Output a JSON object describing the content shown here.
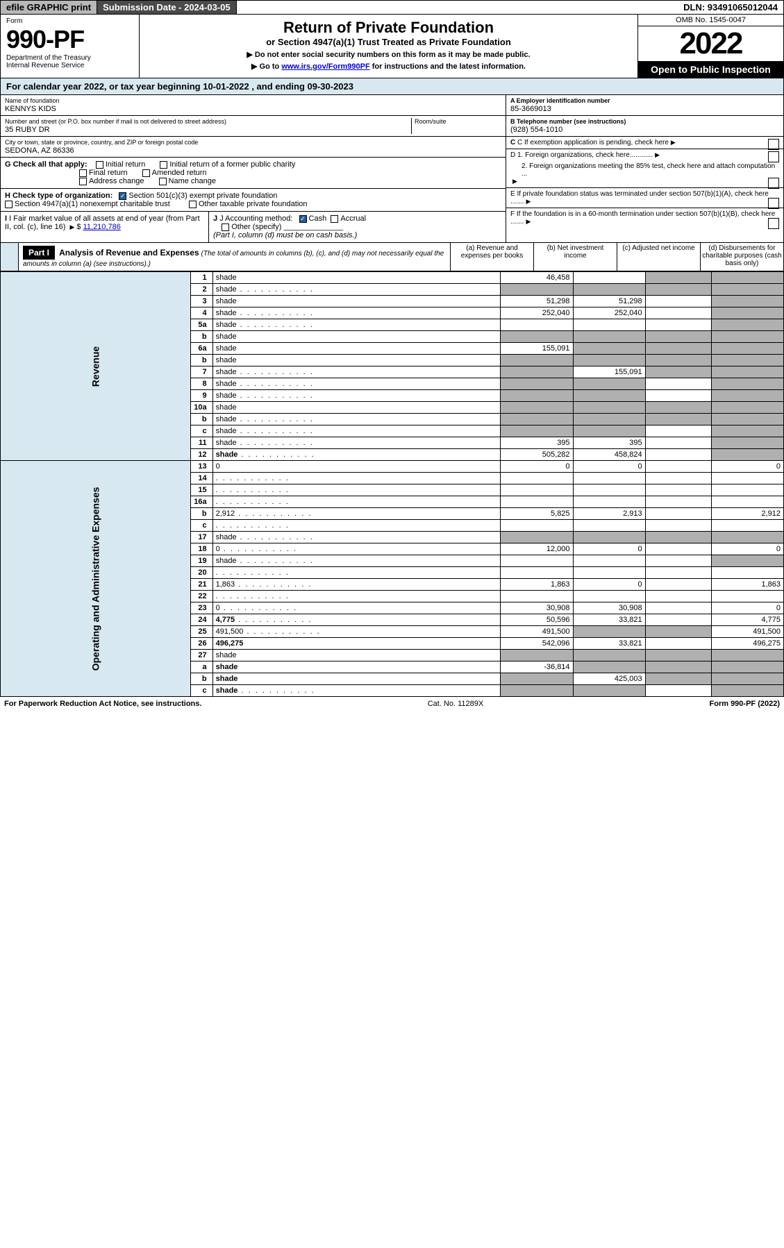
{
  "top": {
    "efile": "efile GRAPHIC print",
    "submission": "Submission Date - 2024-03-05",
    "dln": "DLN: 93491065012044"
  },
  "header": {
    "form_label": "Form",
    "form_num": "990-PF",
    "dept": "Department of the Treasury",
    "irs": "Internal Revenue Service",
    "title": "Return of Private Foundation",
    "subtitle": "or Section 4947(a)(1) Trust Treated as Private Foundation",
    "instr1": "▶ Do not enter social security numbers on this form as it may be made public.",
    "instr2_pre": "▶ Go to ",
    "instr2_link": "www.irs.gov/Form990PF",
    "instr2_post": " for instructions and the latest information.",
    "omb": "OMB No. 1545-0047",
    "year": "2022",
    "open": "Open to Public Inspection"
  },
  "cal_year": "For calendar year 2022, or tax year beginning 10-01-2022               , and ending 09-30-2023",
  "foundation": {
    "name_label": "Name of foundation",
    "name": "KENNYS KIDS",
    "addr_label": "Number and street (or P.O. box number if mail is not delivered to street address)",
    "room_label": "Room/suite",
    "addr": "35 RUBY DR",
    "city_label": "City or town, state or province, country, and ZIP or foreign postal code",
    "city": "SEDONA, AZ  86336",
    "ein_label": "A Employer identification number",
    "ein": "85-3669013",
    "phone_label": "B Telephone number (see instructions)",
    "phone": "(928) 554-1010",
    "c_label": "C If exemption application is pending, check here",
    "d1": "D 1. Foreign organizations, check here............",
    "d2": "2. Foreign organizations meeting the 85% test, check here and attach computation ...",
    "e_label": "E  If private foundation status was terminated under section 507(b)(1)(A), check here .......",
    "f_label": "F  If the foundation is in a 60-month termination under section 507(b)(1)(B), check here .......",
    "g_label": "G Check all that apply:",
    "g_opts": [
      "Initial return",
      "Initial return of a former public charity",
      "Final return",
      "Amended return",
      "Address change",
      "Name change"
    ],
    "h_label": "H Check type of organization:",
    "h_opt1": "Section 501(c)(3) exempt private foundation",
    "h_opt2": "Section 4947(a)(1) nonexempt charitable trust",
    "h_opt3": "Other taxable private foundation",
    "i_label": "I Fair market value of all assets at end of year (from Part II, col. (c), line 16)",
    "i_val": "11,210,786",
    "j_label": "J Accounting method:",
    "j_cash": "Cash",
    "j_accrual": "Accrual",
    "j_other": "Other (specify)",
    "j_note": "(Part I, column (d) must be on cash basis.)"
  },
  "part1": {
    "label": "Part I",
    "title": "Analysis of Revenue and Expenses",
    "note": "(The total of amounts in columns (b), (c), and (d) may not necessarily equal the amounts in column (a) (see instructions).)",
    "cols": {
      "a": "(a) Revenue and expenses per books",
      "b": "(b) Net investment income",
      "c": "(c) Adjusted net income",
      "d": "(d) Disbursements for charitable purposes (cash basis only)"
    }
  },
  "side_labels": {
    "revenue": "Revenue",
    "expenses": "Operating and Administrative Expenses"
  },
  "rows": [
    {
      "n": "1",
      "d": "shade",
      "a": "46,458",
      "b": "",
      "c": "shade"
    },
    {
      "n": "2",
      "d": "shade",
      "a": "shade",
      "b": "shade",
      "c": "shade",
      "dots": true
    },
    {
      "n": "3",
      "d": "shade",
      "a": "51,298",
      "b": "51,298",
      "c": ""
    },
    {
      "n": "4",
      "d": "shade",
      "a": "252,040",
      "b": "252,040",
      "c": "",
      "dots": true
    },
    {
      "n": "5a",
      "d": "shade",
      "a": "",
      "b": "",
      "c": "",
      "dots": true
    },
    {
      "n": "b",
      "d": "shade",
      "a": "shade",
      "b": "shade",
      "c": "shade"
    },
    {
      "n": "6a",
      "d": "shade",
      "a": "155,091",
      "b": "shade",
      "c": "shade"
    },
    {
      "n": "b",
      "d": "shade",
      "a": "shade",
      "b": "shade",
      "c": "shade"
    },
    {
      "n": "7",
      "d": "shade",
      "a": "shade",
      "b": "155,091",
      "c": "shade",
      "dots": true
    },
    {
      "n": "8",
      "d": "shade",
      "a": "shade",
      "b": "shade",
      "c": "",
      "dots": true
    },
    {
      "n": "9",
      "d": "shade",
      "a": "shade",
      "b": "shade",
      "c": "",
      "dots": true
    },
    {
      "n": "10a",
      "d": "shade",
      "a": "shade",
      "b": "shade",
      "c": "shade"
    },
    {
      "n": "b",
      "d": "shade",
      "a": "shade",
      "b": "shade",
      "c": "shade",
      "dots": true
    },
    {
      "n": "c",
      "d": "shade",
      "a": "shade",
      "b": "shade",
      "c": "",
      "dots": true
    },
    {
      "n": "11",
      "d": "shade",
      "a": "395",
      "b": "395",
      "c": "",
      "dots": true
    },
    {
      "n": "12",
      "d": "shade",
      "a": "505,282",
      "b": "458,824",
      "c": "",
      "bold": true,
      "dots": true
    },
    {
      "n": "13",
      "d": "0",
      "a": "0",
      "b": "0",
      "c": ""
    },
    {
      "n": "14",
      "d": "",
      "a": "",
      "b": "",
      "c": "",
      "dots": true
    },
    {
      "n": "15",
      "d": "",
      "a": "",
      "b": "",
      "c": "",
      "dots": true
    },
    {
      "n": "16a",
      "d": "",
      "a": "",
      "b": "",
      "c": "",
      "dots": true
    },
    {
      "n": "b",
      "d": "2,912",
      "a": "5,825",
      "b": "2,913",
      "c": "",
      "dots": true
    },
    {
      "n": "c",
      "d": "",
      "a": "",
      "b": "",
      "c": "",
      "dots": true
    },
    {
      "n": "17",
      "d": "shade",
      "a": "shade",
      "b": "shade",
      "c": "shade",
      "dots": true
    },
    {
      "n": "18",
      "d": "0",
      "a": "12,000",
      "b": "0",
      "c": "",
      "dots": true
    },
    {
      "n": "19",
      "d": "shade",
      "a": "",
      "b": "",
      "c": "",
      "dots": true
    },
    {
      "n": "20",
      "d": "",
      "a": "",
      "b": "",
      "c": "",
      "dots": true
    },
    {
      "n": "21",
      "d": "1,863",
      "a": "1,863",
      "b": "0",
      "c": "",
      "dots": true
    },
    {
      "n": "22",
      "d": "",
      "a": "",
      "b": "",
      "c": "",
      "dots": true
    },
    {
      "n": "23",
      "d": "0",
      "a": "30,908",
      "b": "30,908",
      "c": "",
      "dots": true
    },
    {
      "n": "24",
      "d": "4,775",
      "a": "50,596",
      "b": "33,821",
      "c": "",
      "bold": true,
      "dots": true
    },
    {
      "n": "25",
      "d": "491,500",
      "a": "491,500",
      "b": "shade",
      "c": "shade",
      "dots": true
    },
    {
      "n": "26",
      "d": "496,275",
      "a": "542,096",
      "b": "33,821",
      "c": "",
      "bold": true
    },
    {
      "n": "27",
      "d": "shade",
      "a": "shade",
      "b": "shade",
      "c": "shade"
    },
    {
      "n": "a",
      "d": "shade",
      "a": "-36,814",
      "b": "shade",
      "c": "shade",
      "bold": true
    },
    {
      "n": "b",
      "d": "shade",
      "a": "shade",
      "b": "425,003",
      "c": "shade",
      "bold": true
    },
    {
      "n": "c",
      "d": "shade",
      "a": "shade",
      "b": "shade",
      "c": "",
      "bold": true,
      "dots": true
    }
  ],
  "footer": {
    "left": "For Paperwork Reduction Act Notice, see instructions.",
    "center": "Cat. No. 11289X",
    "right": "Form 990-PF (2022)"
  }
}
